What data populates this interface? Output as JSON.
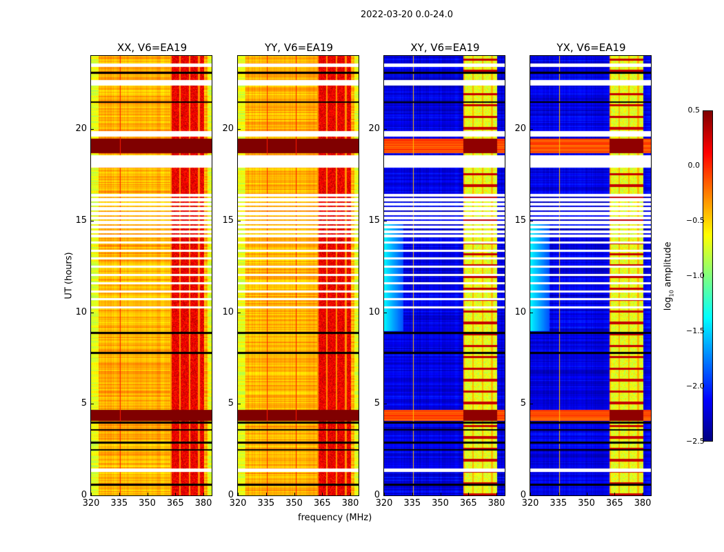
{
  "chart_data": {
    "type": "heatmap",
    "title": "2022-03-20 0.0-24.0",
    "xlabel": "frequency (MHz)",
    "ylabel": "UT (hours)",
    "xlim": [
      320,
      384.4
    ],
    "ylim": [
      0,
      24
    ],
    "xticks": [
      "320",
      "335",
      "350",
      "365",
      "380"
    ],
    "xtick_values": [
      320,
      335,
      350,
      365,
      380
    ],
    "yticks": [
      "0",
      "5",
      "10",
      "15",
      "20"
    ],
    "ytick_values": [
      0,
      5,
      10,
      15,
      20
    ],
    "panels": [
      {
        "title": "XX, V6=EA19",
        "kind": "auto",
        "base": -0.4
      },
      {
        "title": "YY, V6=EA19",
        "kind": "auto",
        "base": -0.4
      },
      {
        "title": "XY, V6=EA19",
        "kind": "cross",
        "base": -2.2
      },
      {
        "title": "YX, V6=EA19",
        "kind": "cross",
        "base": -2.2
      }
    ],
    "rfi_band_mhz": [
      362,
      380
    ],
    "flagged_white_hours": [
      [
        14.1,
        16.6
      ],
      [
        17.9,
        18.6
      ],
      [
        19.6,
        19.9
      ],
      [
        22.4,
        22.7
      ],
      [
        23.4,
        23.6
      ],
      [
        1.3,
        1.5
      ]
    ],
    "flagged_black_hours": [
      0.6,
      2.5,
      2.9,
      3.6,
      4.0,
      7.8,
      8.9,
      21.5,
      23.1
    ],
    "bright_band_hours": [
      [
        18.7,
        19.5
      ],
      [
        4.1,
        4.7
      ]
    ],
    "colorbar": {
      "label": "log10 amplitude",
      "label_main": "log",
      "label_sub": "10",
      "label_rest": " amplitude",
      "range": [
        -2.5,
        0.5
      ],
      "ticks": [
        "0.5",
        "0.0",
        "−0.5",
        "−1.0",
        "−1.5",
        "−2.0",
        "−2.5"
      ],
      "tick_values": [
        0.5,
        0.0,
        -0.5,
        -1.0,
        -1.5,
        -2.0,
        -2.5
      ],
      "colormap": "jet"
    }
  }
}
